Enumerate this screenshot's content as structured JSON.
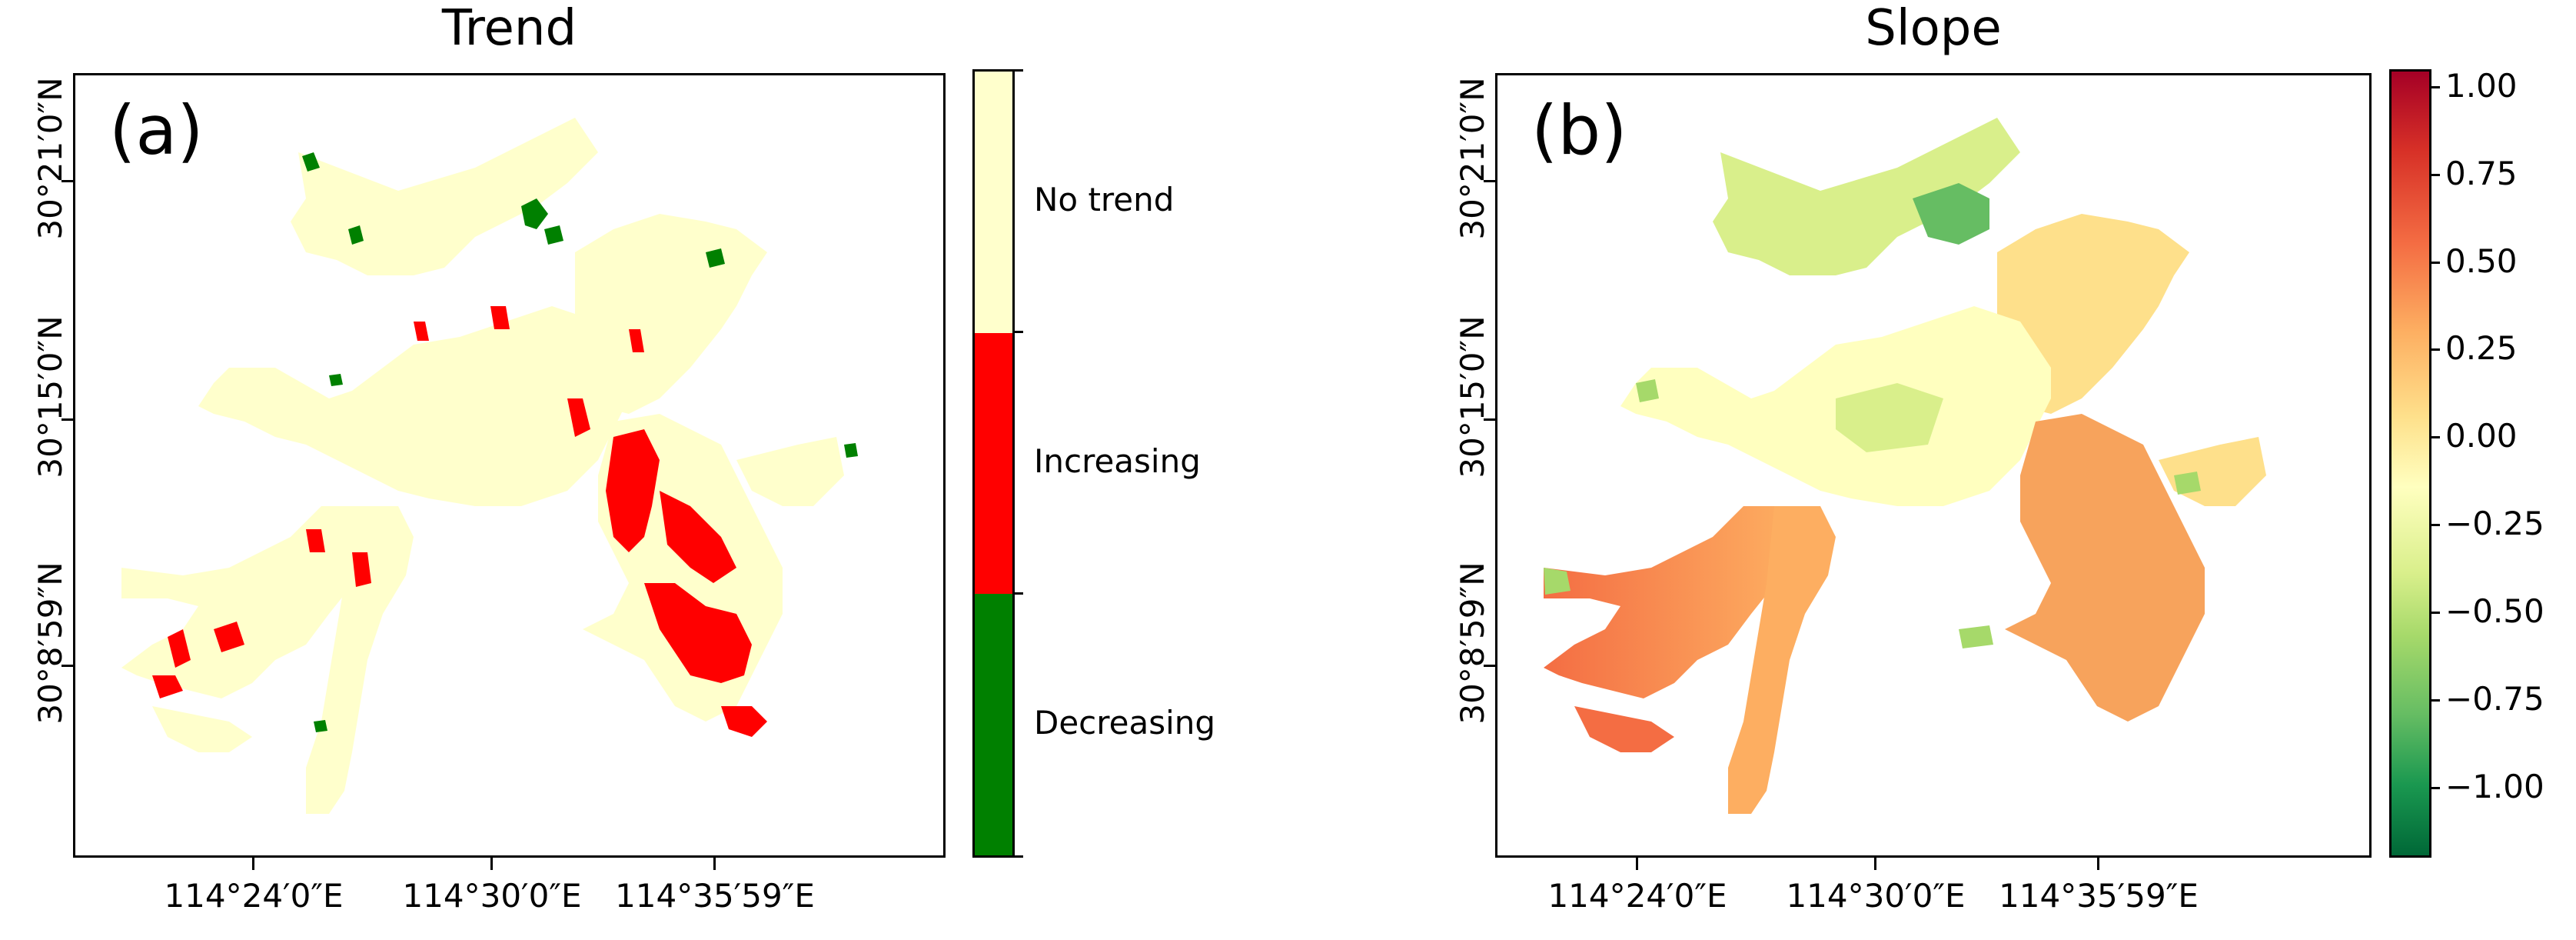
{
  "panels": [
    {
      "title": "Trend",
      "label": "(a)",
      "lat_ticks": [
        "30°21′0″N",
        "30°15′0″N",
        "30°8′59″N"
      ],
      "lon_ticks": [
        "114°24′0″E",
        "114°30′0″E",
        "114°35′59″E"
      ],
      "legend": {
        "type": "categorical",
        "entries": [
          {
            "label": "No trend",
            "color": "#ffffcc"
          },
          {
            "label": "Increasing",
            "color": "#ff0000"
          },
          {
            "label": "Decreasing",
            "color": "#008000"
          }
        ]
      }
    },
    {
      "title": "Slope",
      "label": "(b)",
      "lat_ticks": [
        "30°21′0″N",
        "30°15′0″N",
        "30°8′59″N"
      ],
      "lon_ticks": [
        "114°24′0″E",
        "114°30′0″E",
        "114°35′59″E"
      ],
      "colorbar": {
        "type": "continuous",
        "colormap": "RdYlGn_r",
        "min": -1.2,
        "max": 1.05,
        "tick_labels": [
          "1.00",
          "0.75",
          "0.50",
          "0.25",
          "0.00",
          "−0.25",
          "−0.50",
          "−0.75",
          "−1.00"
        ],
        "tick_values": [
          1.0,
          0.75,
          0.5,
          0.25,
          0.0,
          -0.25,
          -0.5,
          -0.75,
          -1.0
        ]
      }
    }
  ],
  "colors": {
    "lake_fill": "#ffffcc",
    "increasing": "#ff0000",
    "decreasing": "#008000",
    "slope_low": "#006837",
    "slope_mid": "#ffffbf",
    "slope_high": "#a50026"
  }
}
